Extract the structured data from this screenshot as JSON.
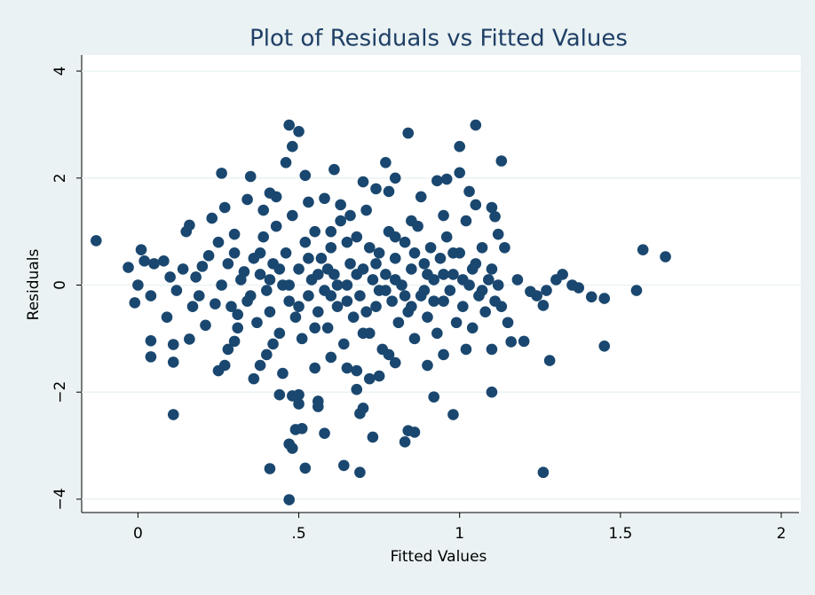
{
  "chart_data": {
    "type": "scatter",
    "title": "Plot of Residuals vs Fitted Values",
    "x_label": "Fitted Values",
    "y_label": "Residuals",
    "color": "#1a476f",
    "grid": true,
    "xlim": [
      -0.175,
      2.0
    ],
    "ylim": [
      -4.25,
      4.3
    ],
    "xticks": [
      0,
      {
        "value": 0.5,
        "label": ".5"
      },
      1,
      1.5,
      2
    ],
    "yticks": [
      {
        "value": -4,
        "label": "−4"
      },
      {
        "value": -2,
        "label": "−2"
      },
      0,
      2,
      4
    ],
    "x": [
      -0.13,
      0.01,
      -0.03,
      -0.01,
      0.0,
      0.02,
      0.05,
      0.04,
      0.04,
      0.04,
      0.11,
      0.11,
      0.09,
      0.16,
      0.11,
      0.08,
      0.1,
      0.12,
      0.14,
      0.15,
      0.16,
      0.17,
      0.18,
      0.19,
      0.2,
      0.21,
      0.22,
      0.23,
      0.24,
      0.25,
      0.26,
      0.27,
      0.25,
      0.27,
      0.28,
      0.3,
      0.3,
      0.31,
      0.33,
      0.34,
      0.35,
      0.36,
      0.38,
      0.39,
      0.4,
      0.41,
      0.43,
      0.47,
      0.41,
      0.47,
      0.52,
      0.64,
      0.69,
      1.26,
      0.47,
      0.5,
      0.48,
      0.84,
      1.05,
      1.0,
      1.13,
      0.77,
      0.61,
      1.57,
      1.64,
      1.55,
      1.45,
      1.41,
      1.45,
      1.28,
      1.1,
      0.98,
      0.92,
      0.84,
      0.86,
      0.83,
      0.73,
      0.69,
      0.7,
      0.58,
      0.48,
      0.49,
      0.51,
      0.56,
      0.56,
      0.44,
      0.48,
      0.5,
      0.5,
      1.16,
      1.2,
      1.26,
      1.3,
      1.32,
      1.35,
      1.37,
      1.27,
      1.22,
      1.18,
      1.24,
      0.93,
      0.96,
      1.03,
      1.05,
      1.1,
      1.11,
      1.0,
      0.8,
      0.78,
      0.7,
      0.74,
      0.88,
      0.52,
      0.46,
      0.53,
      0.58,
      0.63,
      0.66,
      0.85,
      0.95,
      1.14,
      1.12,
      1.15,
      1.13,
      1.1,
      1.02,
      0.95,
      0.9,
      0.8,
      0.75,
      0.68,
      0.65,
      0.6,
      0.55,
      0.45,
      0.42,
      0.68,
      0.72,
      0.78,
      0.32,
      0.34,
      0.36,
      0.37,
      0.38,
      0.39,
      0.4,
      0.41,
      0.42,
      0.43,
      0.44,
      0.45,
      0.46,
      0.47,
      0.48,
      0.49,
      0.5,
      0.51,
      0.52,
      0.53,
      0.54,
      0.55,
      0.56,
      0.57,
      0.58,
      0.59,
      0.6,
      0.61,
      0.62,
      0.63,
      0.64,
      0.65,
      0.66,
      0.67,
      0.68,
      0.69,
      0.7,
      0.71,
      0.72,
      0.73,
      0.74,
      0.75,
      0.76,
      0.77,
      0.78,
      0.79,
      0.8,
      0.81,
      0.82,
      0.83,
      0.84,
      0.85,
      0.86,
      0.87,
      0.88,
      0.89,
      0.9,
      0.91,
      0.92,
      0.93,
      0.94,
      0.95,
      0.96,
      0.97,
      0.98,
      0.99,
      1.0,
      1.01,
      1.02,
      1.03,
      1.04,
      1.05,
      1.06,
      1.07,
      1.08,
      1.09,
      1.1,
      1.11,
      1.12,
      0.35,
      0.38,
      0.41,
      0.44,
      0.47,
      0.5,
      0.53,
      0.56,
      0.59,
      0.62,
      0.65,
      0.68,
      0.71,
      0.74,
      0.77,
      0.8,
      0.83,
      0.86,
      0.89,
      0.92,
      0.95,
      0.98,
      1.01,
      1.04,
      1.07,
      0.26,
      0.28,
      0.29,
      0.3,
      0.31,
      0.55,
      0.6,
      0.65,
      0.7,
      0.75,
      0.8,
      0.85,
      0.9,
      0.6,
      0.72
    ],
    "values": [
      0.83,
      0.66,
      0.33,
      -0.33,
      0.0,
      0.45,
      0.4,
      -0.2,
      -1.04,
      -1.34,
      -1.44,
      -1.11,
      -0.6,
      -1.01,
      -2.42,
      0.45,
      0.15,
      -0.1,
      0.3,
      1.0,
      1.12,
      -0.4,
      0.15,
      -0.2,
      0.35,
      -0.75,
      0.55,
      1.25,
      -0.35,
      0.8,
      2.09,
      1.45,
      -1.6,
      -1.5,
      -1.2,
      -1.05,
      0.95,
      -0.55,
      0.25,
      1.6,
      2.03,
      -1.75,
      -1.5,
      1.4,
      -1.3,
      1.72,
      1.65,
      -2.97,
      -3.43,
      -4.01,
      -3.42,
      -3.37,
      -3.5,
      -3.5,
      2.99,
      2.87,
      2.59,
      2.84,
      2.99,
      2.59,
      2.32,
      2.29,
      2.16,
      0.66,
      0.53,
      -0.1,
      -0.25,
      -0.22,
      -1.14,
      -1.41,
      -2.0,
      -2.42,
      -2.09,
      -2.72,
      -2.75,
      -2.93,
      -2.84,
      -2.4,
      -2.3,
      -2.77,
      -3.05,
      -2.7,
      -2.68,
      -2.17,
      -2.27,
      -2.05,
      -2.07,
      -2.05,
      -2.22,
      -1.06,
      -1.05,
      -0.38,
      0.1,
      0.2,
      0.0,
      -0.05,
      -0.1,
      -0.12,
      0.1,
      -0.2,
      1.95,
      1.98,
      1.75,
      1.5,
      1.45,
      1.28,
      2.1,
      2.0,
      1.75,
      1.93,
      1.8,
      1.65,
      2.05,
      2.29,
      1.55,
      1.62,
      1.5,
      1.3,
      1.2,
      1.3,
      0.7,
      0.95,
      -0.7,
      -0.4,
      -1.2,
      -1.2,
      -1.3,
      -1.5,
      -1.45,
      -1.7,
      -1.95,
      -1.55,
      -1.35,
      -1.55,
      -1.65,
      -1.1,
      -1.6,
      -1.75,
      -1.3,
      0.1,
      -0.3,
      0.5,
      -0.7,
      0.2,
      0.9,
      -0.1,
      -0.5,
      0.4,
      1.1,
      -0.9,
      0.0,
      0.6,
      -0.3,
      1.3,
      -0.6,
      0.3,
      -1.0,
      0.8,
      -0.2,
      0.1,
      1.0,
      -0.5,
      0.5,
      -0.1,
      -0.8,
      0.7,
      0.2,
      -0.4,
      1.2,
      -1.1,
      0.0,
      0.4,
      -0.6,
      0.9,
      -0.2,
      0.3,
      1.4,
      -0.9,
      0.1,
      -0.4,
      0.6,
      -1.2,
      0.2,
      1.0,
      -0.3,
      0.5,
      -0.7,
      0.0,
      0.8,
      -0.5,
      0.3,
      -1.0,
      1.1,
      -0.2,
      0.4,
      -0.6,
      0.7,
      0.1,
      -0.9,
      0.5,
      -0.3,
      0.9,
      -0.1,
      0.2,
      -0.7,
      0.6,
      -0.4,
      1.2,
      0.0,
      -0.8,
      0.4,
      -0.2,
      0.7,
      -0.5,
      0.1,
      0.3,
      -0.3,
      0.0,
      -0.2,
      0.6,
      0.1,
      0.3,
      0.0,
      -0.4,
      0.5,
      0.2,
      0.3,
      0.0,
      -0.3,
      0.2,
      -0.5,
      0.4,
      -0.1,
      0.1,
      -0.2,
      0.6,
      -0.1,
      -0.3,
      0.2,
      0.6,
      0.1,
      0.3,
      -0.1,
      0.0,
      0.4,
      -0.4,
      0.6,
      -0.8,
      -0.8,
      -0.2,
      0.8,
      -0.9,
      -0.1,
      0.9,
      -0.4,
      0.2,
      1.0,
      0.7
    ]
  }
}
